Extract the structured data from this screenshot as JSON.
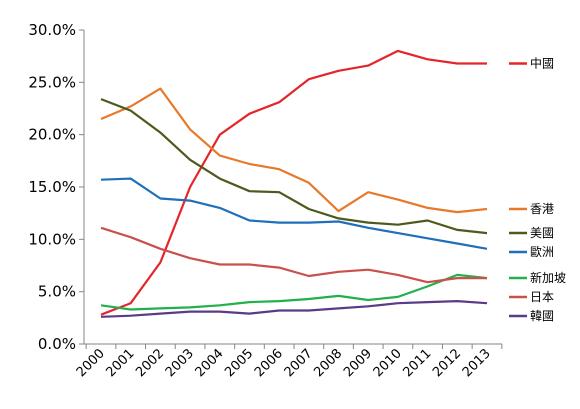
{
  "chart_data": {
    "type": "line",
    "title": "",
    "xlabel": "",
    "ylabel": "",
    "categories": [
      "2000",
      "2001",
      "2002",
      "2003",
      "2004",
      "2005",
      "2006",
      "2007",
      "2008",
      "2009",
      "2010",
      "2011",
      "2012",
      "2013"
    ],
    "ylim": [
      0,
      30
    ],
    "y_ticks": [
      "0.0%",
      "5.0%",
      "10.0%",
      "15.0%",
      "20.0%",
      "25.0%",
      "30.0%"
    ],
    "grid": false,
    "legend_position": "right, at line ends",
    "series": [
      {
        "name": "中國",
        "color": "#e3262b",
        "values": [
          2.8,
          3.9,
          7.8,
          15.0,
          20.0,
          22.0,
          23.1,
          25.3,
          26.1,
          26.6,
          28.0,
          27.2,
          26.8,
          26.8
        ]
      },
      {
        "name": "香港",
        "color": "#e8792a",
        "values": [
          21.5,
          22.7,
          24.4,
          20.5,
          18.0,
          17.2,
          16.7,
          15.4,
          12.7,
          14.5,
          13.8,
          13.0,
          12.6,
          12.9
        ]
      },
      {
        "name": "美國",
        "color": "#4d5a1e",
        "values": [
          23.4,
          22.3,
          20.2,
          17.6,
          15.8,
          14.6,
          14.5,
          12.9,
          12.0,
          11.6,
          11.4,
          11.8,
          10.9,
          10.6
        ]
      },
      {
        "name": "歐洲",
        "color": "#1f6fba",
        "values": [
          15.7,
          15.8,
          13.9,
          13.7,
          13.0,
          11.8,
          11.6,
          11.6,
          11.7,
          11.1,
          10.6,
          10.1,
          9.6,
          9.1
        ]
      },
      {
        "name": "新加坡",
        "color": "#22b04b",
        "values": [
          3.7,
          3.3,
          3.4,
          3.5,
          3.7,
          4.0,
          4.1,
          4.3,
          4.6,
          4.2,
          4.5,
          5.5,
          6.6,
          6.3
        ]
      },
      {
        "name": "日本",
        "color": "#c9504b",
        "values": [
          11.1,
          10.2,
          9.1,
          8.2,
          7.6,
          7.6,
          7.3,
          6.5,
          6.9,
          7.1,
          6.6,
          5.9,
          6.3,
          6.3
        ]
      },
      {
        "name": "韓國",
        "color": "#5b3b87",
        "values": [
          2.6,
          2.7,
          2.9,
          3.1,
          3.1,
          2.9,
          3.2,
          3.2,
          3.4,
          3.6,
          3.9,
          4.0,
          4.1,
          3.9
        ]
      }
    ]
  }
}
